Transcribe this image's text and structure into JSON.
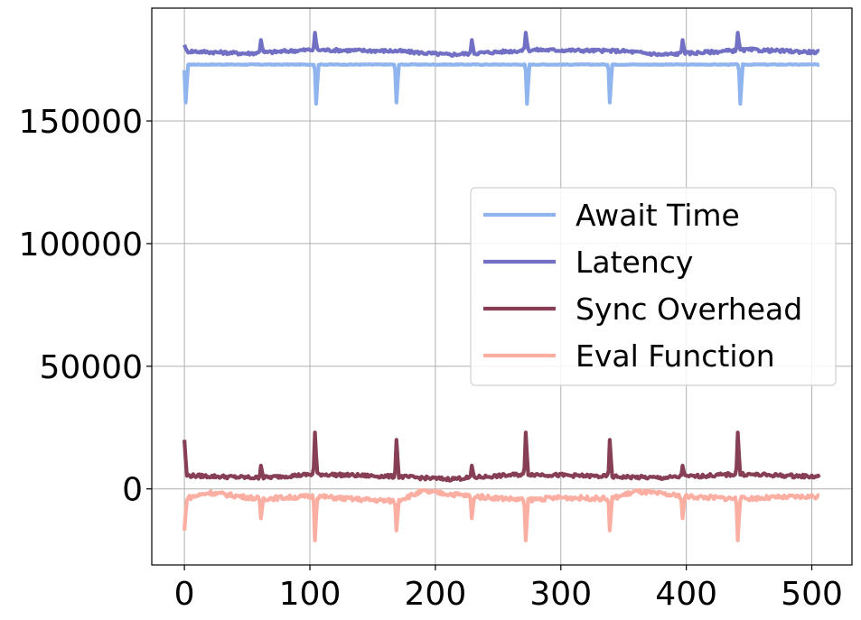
{
  "chart_data": {
    "type": "line",
    "title": "",
    "xlabel": "",
    "ylabel": "",
    "xlim": [
      -26,
      532
    ],
    "ylim": [
      -31000,
      196000
    ],
    "x_ticks": [
      0,
      100,
      200,
      300,
      400,
      500
    ],
    "x_tick_labels": [
      "0",
      "100",
      "200",
      "300",
      "400",
      "500"
    ],
    "y_ticks": [
      0,
      50000,
      100000,
      150000
    ],
    "y_tick_labels": [
      "0",
      "50000",
      "100000",
      "150000"
    ],
    "grid": true,
    "legend_position": "center-right",
    "x_max": 506,
    "series": [
      {
        "name": "Await Time",
        "color": "#8fb4ee",
        "base": 173000,
        "baseline": [
          [
            0,
            173000
          ],
          [
            506,
            173000
          ]
        ],
        "spikes": [
          {
            "x": 1,
            "y": 157500
          },
          {
            "x": 105,
            "y": 157000
          },
          {
            "x": 169,
            "y": 157500
          },
          {
            "x": 273,
            "y": 157000
          },
          {
            "x": 339,
            "y": 157500
          },
          {
            "x": 443,
            "y": 157000
          }
        ]
      },
      {
        "name": "Latency",
        "color": "#7270c4",
        "base": 178500,
        "baseline": [
          [
            0,
            178500
          ],
          [
            50,
            177500
          ],
          [
            100,
            179000
          ],
          [
            170,
            178500
          ],
          [
            210,
            177000
          ],
          [
            280,
            179000
          ],
          [
            350,
            178500
          ],
          [
            380,
            177000
          ],
          [
            450,
            179000
          ],
          [
            506,
            178000
          ]
        ],
        "spikes": [
          {
            "x": 0,
            "y": 181000
          },
          {
            "x": 61,
            "y": 183000
          },
          {
            "x": 104,
            "y": 186000
          },
          {
            "x": 229,
            "y": 183000
          },
          {
            "x": 272,
            "y": 186000
          },
          {
            "x": 397,
            "y": 183000
          },
          {
            "x": 441,
            "y": 186000
          }
        ]
      },
      {
        "name": "Sync Overhead",
        "color": "#873f55",
        "base": 5500,
        "baseline": [
          [
            0,
            5500
          ],
          [
            60,
            4500
          ],
          [
            104,
            6000
          ],
          [
            170,
            5000
          ],
          [
            210,
            4000
          ],
          [
            272,
            6000
          ],
          [
            340,
            5000
          ],
          [
            380,
            4500
          ],
          [
            441,
            6000
          ],
          [
            506,
            5000
          ]
        ],
        "spikes": [
          {
            "x": 0,
            "y": 20000
          },
          {
            "x": 61,
            "y": 9500
          },
          {
            "x": 104,
            "y": 23000
          },
          {
            "x": 169,
            "y": 20000
          },
          {
            "x": 229,
            "y": 9500
          },
          {
            "x": 272,
            "y": 23000
          },
          {
            "x": 339,
            "y": 20000
          },
          {
            "x": 397,
            "y": 9500
          },
          {
            "x": 441,
            "y": 23000
          }
        ]
      },
      {
        "name": "Eval Function",
        "color": "#fbaea2",
        "base": -3000,
        "baseline": [
          [
            0,
            -4000
          ],
          [
            20,
            -1500
          ],
          [
            60,
            -4000
          ],
          [
            104,
            -3000
          ],
          [
            130,
            -4000
          ],
          [
            168,
            -5000
          ],
          [
            190,
            -1000
          ],
          [
            230,
            -3000
          ],
          [
            272,
            -4500
          ],
          [
            300,
            -3500
          ],
          [
            340,
            -4000
          ],
          [
            360,
            -1000
          ],
          [
            397,
            -3000
          ],
          [
            441,
            -4000
          ],
          [
            506,
            -3000
          ]
        ],
        "spikes": [
          {
            "x": 0,
            "y": -17000
          },
          {
            "x": 61,
            "y": -12000
          },
          {
            "x": 104,
            "y": -21000
          },
          {
            "x": 169,
            "y": -17000
          },
          {
            "x": 229,
            "y": -12000
          },
          {
            "x": 272,
            "y": -21000
          },
          {
            "x": 339,
            "y": -17000
          },
          {
            "x": 397,
            "y": -12000
          },
          {
            "x": 441,
            "y": -21000
          }
        ]
      }
    ]
  }
}
